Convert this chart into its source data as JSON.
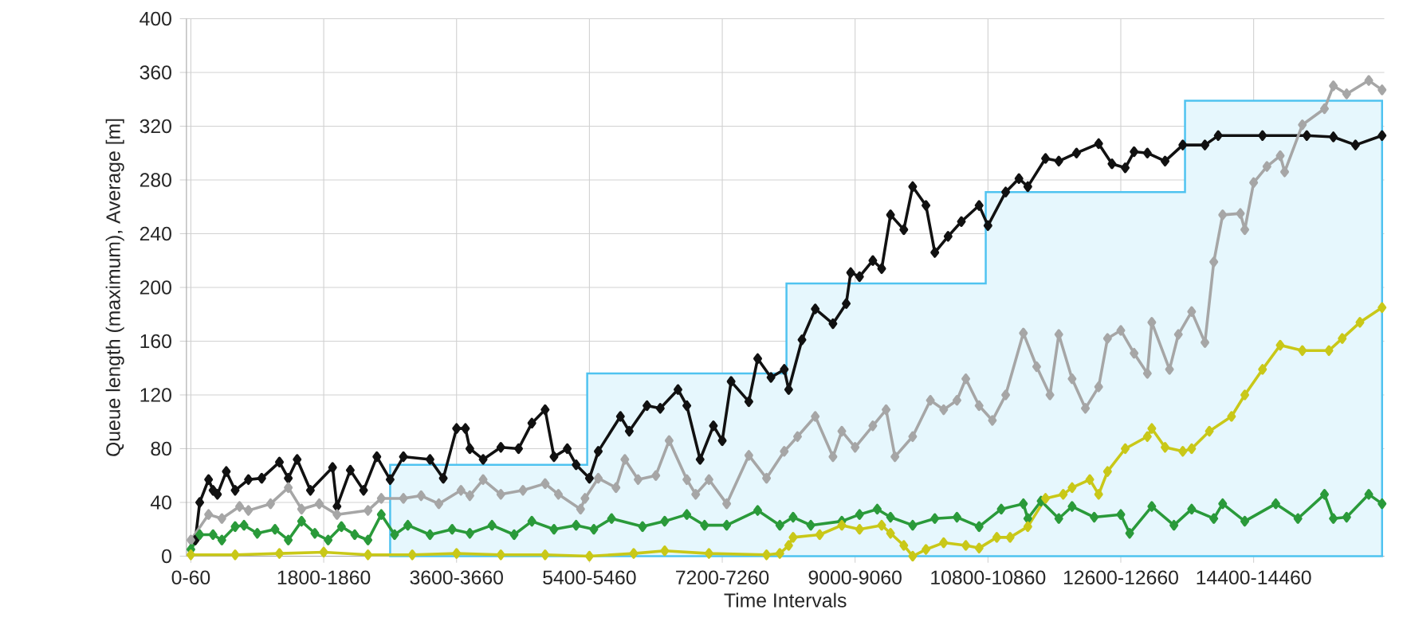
{
  "chart_data": {
    "type": "line",
    "xlabel": "Time Intervals",
    "ylabel": "Queue length (maximum), Average [m]",
    "categories": [
      "0-60",
      null,
      null,
      null,
      null,
      null,
      null,
      null,
      null,
      null,
      null,
      null,
      null,
      null,
      null,
      null,
      null,
      null,
      null,
      null,
      null,
      null,
      null,
      null,
      null,
      null,
      null,
      null,
      null,
      null,
      "1800-1860",
      null,
      null,
      null,
      null,
      null,
      null,
      null,
      null,
      null,
      null,
      null,
      null,
      null,
      null,
      null,
      null,
      null,
      null,
      null,
      null,
      null,
      null,
      null,
      null,
      null,
      null,
      null,
      null,
      null,
      "3600-3660",
      null,
      null,
      null,
      null,
      null,
      null,
      null,
      null,
      null,
      null,
      null,
      null,
      null,
      null,
      null,
      null,
      null,
      null,
      null,
      null,
      null,
      null,
      null,
      null,
      null,
      null,
      null,
      null,
      null,
      "5400-5460",
      null,
      null,
      null,
      null,
      null,
      null,
      null,
      null,
      null,
      null,
      null,
      null,
      null,
      null,
      null,
      null,
      null,
      null,
      null,
      null,
      null,
      null,
      null,
      null,
      null,
      null,
      null,
      null,
      null,
      "7200-7260",
      null,
      null,
      null,
      null,
      null,
      null,
      null,
      null,
      null,
      null,
      null,
      null,
      null,
      null,
      null,
      null,
      null,
      null,
      null,
      null,
      null,
      null,
      null,
      null,
      null,
      null,
      null,
      null,
      null,
      "9000-9060",
      null,
      null,
      null,
      null,
      null,
      null,
      null,
      null,
      null,
      null,
      null,
      null,
      null,
      null,
      null,
      null,
      null,
      null,
      null,
      null,
      null,
      null,
      null,
      null,
      null,
      null,
      null,
      null,
      null,
      "10800-10860",
      null,
      null,
      null,
      null,
      null,
      null,
      null,
      null,
      null,
      null,
      null,
      null,
      null,
      null,
      null,
      null,
      null,
      null,
      null,
      null,
      null,
      null,
      null,
      null,
      null,
      null,
      null,
      null,
      null,
      "12600-12660",
      null,
      null,
      null,
      null,
      null,
      null,
      null,
      null,
      null,
      null,
      null,
      null,
      null,
      null,
      null,
      null,
      null,
      null,
      null,
      null,
      null,
      null,
      null,
      null,
      null,
      null,
      null,
      null,
      null,
      "14400-14460",
      null,
      null,
      null,
      null,
      null,
      null,
      null,
      null,
      null,
      null,
      null,
      null,
      null,
      null,
      null,
      null,
      null,
      null,
      null,
      null,
      null,
      null,
      null,
      null,
      null,
      null,
      null,
      null,
      null
    ],
    "ylim": [
      0,
      400
    ],
    "yticks": [
      0,
      40,
      80,
      120,
      160,
      200,
      240,
      280,
      320,
      360,
      400
    ],
    "grid": true,
    "series": [
      {
        "type": "area",
        "color": "#4fc3f0",
        "values": [
          null,
          null,
          null,
          null,
          null,
          null,
          null,
          null,
          null,
          null,
          null,
          null,
          null,
          null,
          null,
          null,
          null,
          null,
          null,
          null,
          null,
          null,
          null,
          null,
          null,
          null,
          null,
          null,
          null,
          null,
          null,
          null,
          null,
          null,
          null,
          null,
          null,
          null,
          null,
          null,
          null,
          null,
          null,
          null,
          null,
          68,
          68,
          68,
          68,
          68,
          68,
          68,
          68,
          68,
          68,
          68,
          68,
          68,
          68,
          68,
          68,
          68,
          68,
          68,
          68,
          68,
          68,
          68,
          68,
          68,
          68,
          68,
          68,
          68,
          68,
          68,
          68,
          68,
          68,
          68,
          68,
          68,
          68,
          68,
          68,
          68,
          68,
          68,
          68,
          68,
          136,
          136,
          136,
          136,
          136,
          136,
          136,
          136,
          136,
          136,
          136,
          136,
          136,
          136,
          136,
          136,
          136,
          136,
          136,
          136,
          136,
          136,
          136,
          136,
          136,
          136,
          136,
          136,
          136,
          136,
          136,
          136,
          136,
          136,
          136,
          136,
          136,
          136,
          136,
          136,
          136,
          136,
          136,
          136,
          136,
          203,
          203,
          203,
          203,
          203,
          203,
          203,
          203,
          203,
          203,
          203,
          203,
          203,
          203,
          203,
          203,
          203,
          203,
          203,
          203,
          203,
          203,
          203,
          203,
          203,
          203,
          203,
          203,
          203,
          203,
          203,
          203,
          203,
          203,
          203,
          203,
          203,
          203,
          203,
          203,
          203,
          203,
          203,
          203,
          203,
          271,
          271,
          271,
          271,
          271,
          271,
          271,
          271,
          271,
          271,
          271,
          271,
          271,
          271,
          271,
          271,
          271,
          271,
          271,
          271,
          271,
          271,
          271,
          271,
          271,
          271,
          271,
          271,
          271,
          271,
          271,
          271,
          271,
          271,
          271,
          271,
          271,
          271,
          271,
          271,
          271,
          271,
          271,
          271,
          271,
          339,
          339,
          339,
          339,
          339,
          339,
          339,
          339,
          339,
          339,
          339,
          339,
          339,
          339,
          339,
          339,
          339,
          339,
          339,
          339,
          339,
          339,
          339,
          339,
          339,
          339,
          339,
          339,
          339,
          339,
          339,
          339,
          339,
          339,
          339,
          339,
          339,
          339,
          339,
          339,
          339,
          339,
          339,
          339,
          339
        ]
      },
      {
        "color": "#111111",
        "marker": "diamond",
        "values": [
          null,
          12,
          40,
          null,
          57,
          49,
          46,
          null,
          63,
          null,
          49,
          null,
          null,
          57,
          null,
          null,
          58,
          null,
          null,
          null,
          70,
          null,
          58,
          null,
          72,
          null,
          null,
          49,
          null,
          null,
          null,
          null,
          66,
          37,
          null,
          null,
          64,
          null,
          null,
          49,
          null,
          null,
          74,
          null,
          null,
          57,
          null,
          null,
          74,
          null,
          null,
          null,
          null,
          null,
          72,
          null,
          null,
          58,
          null,
          null,
          95,
          null,
          95,
          80,
          null,
          null,
          72,
          null,
          null,
          null,
          81,
          null,
          null,
          null,
          80,
          null,
          null,
          99,
          null,
          null,
          109,
          null,
          74,
          null,
          null,
          80,
          null,
          68,
          null,
          null,
          58,
          null,
          78,
          null,
          null,
          null,
          null,
          104,
          null,
          93,
          null,
          null,
          null,
          112,
          null,
          null,
          110,
          null,
          null,
          null,
          124,
          null,
          112,
          null,
          null,
          72,
          null,
          null,
          97,
          null,
          86,
          null,
          130,
          null,
          null,
          null,
          115,
          null,
          147,
          null,
          null,
          133,
          null,
          null,
          139,
          124,
          null,
          null,
          161,
          null,
          null,
          184,
          null,
          null,
          null,
          173,
          null,
          null,
          188,
          211,
          null,
          208,
          null,
          null,
          220,
          null,
          214,
          null,
          254,
          null,
          null,
          243,
          null,
          275,
          null,
          null,
          261,
          null,
          226,
          null,
          null,
          238,
          null,
          null,
          249,
          null,
          null,
          null,
          261,
          null,
          246,
          null,
          null,
          null,
          271,
          null,
          null,
          281,
          null,
          275,
          null,
          null,
          null,
          296,
          null,
          null,
          294,
          null,
          null,
          null,
          300,
          null,
          null,
          null,
          null,
          307,
          null,
          null,
          292,
          null,
          null,
          289,
          null,
          301,
          null,
          null,
          300,
          null,
          null,
          null,
          294,
          null,
          null,
          null,
          306,
          null,
          null,
          null,
          null,
          306,
          null,
          null,
          313,
          null,
          null,
          null,
          null,
          null,
          null,
          null,
          null,
          null,
          313,
          null,
          null,
          null,
          null,
          null,
          null,
          null,
          null,
          null,
          313,
          null,
          null,
          null,
          null,
          null,
          312,
          null,
          null,
          null,
          null,
          306,
          null,
          null,
          null,
          null,
          null,
          313
        ]
      },
      {
        "color": "#a6a6a6",
        "marker": "diamond",
        "values": [
          12,
          null,
          null,
          null,
          31,
          null,
          null,
          28,
          null,
          null,
          null,
          37,
          null,
          34,
          null,
          null,
          null,
          null,
          39,
          null,
          null,
          null,
          51,
          null,
          null,
          35,
          null,
          null,
          null,
          39,
          null,
          null,
          null,
          31,
          null,
          null,
          null,
          null,
          null,
          null,
          34,
          null,
          null,
          43,
          null,
          null,
          null,
          null,
          43,
          null,
          null,
          null,
          45,
          null,
          null,
          null,
          39,
          null,
          null,
          null,
          null,
          49,
          null,
          45,
          null,
          null,
          57,
          null,
          null,
          null,
          46,
          null,
          null,
          null,
          null,
          49,
          null,
          null,
          null,
          null,
          54,
          null,
          null,
          46,
          null,
          null,
          null,
          null,
          35,
          43,
          null,
          null,
          58,
          null,
          null,
          null,
          51,
          null,
          72,
          null,
          null,
          57,
          null,
          null,
          null,
          60,
          null,
          null,
          86,
          null,
          null,
          null,
          57,
          null,
          46,
          null,
          null,
          57,
          null,
          null,
          null,
          39,
          null,
          null,
          null,
          null,
          75,
          null,
          null,
          null,
          58,
          null,
          null,
          null,
          78,
          null,
          null,
          89,
          null,
          null,
          null,
          104,
          null,
          null,
          null,
          74,
          null,
          93,
          null,
          null,
          81,
          null,
          null,
          null,
          97,
          null,
          null,
          109,
          null,
          74,
          null,
          null,
          null,
          89,
          null,
          null,
          null,
          116,
          null,
          null,
          109,
          null,
          null,
          116,
          null,
          132,
          null,
          null,
          112,
          null,
          null,
          101,
          null,
          null,
          120,
          null,
          null,
          null,
          166,
          null,
          null,
          141,
          null,
          null,
          120,
          null,
          165,
          null,
          null,
          132,
          null,
          null,
          110,
          null,
          null,
          126,
          null,
          162,
          null,
          null,
          168,
          null,
          null,
          151,
          null,
          null,
          136,
          174,
          null,
          null,
          null,
          139,
          null,
          165,
          null,
          null,
          182,
          null,
          null,
          159,
          null,
          219,
          null,
          254,
          null,
          null,
          null,
          255,
          243,
          null,
          278,
          null,
          null,
          290,
          null,
          null,
          298,
          286,
          null,
          null,
          null,
          321,
          null,
          null,
          null,
          null,
          333,
          null,
          350,
          null,
          null,
          344,
          null,
          null,
          null,
          null,
          354,
          null,
          null,
          347
        ]
      },
      {
        "color": "#2a9a3a",
        "marker": "diamond",
        "values": [
          5,
          null,
          16,
          null,
          null,
          16,
          null,
          12,
          null,
          null,
          22,
          null,
          23,
          null,
          null,
          17,
          null,
          null,
          null,
          20,
          null,
          null,
          12,
          null,
          null,
          26,
          null,
          null,
          17,
          null,
          null,
          12,
          null,
          null,
          22,
          null,
          null,
          16,
          null,
          null,
          12,
          null,
          null,
          31,
          null,
          null,
          16,
          null,
          null,
          23,
          null,
          null,
          null,
          null,
          16,
          null,
          null,
          null,
          null,
          20,
          null,
          null,
          null,
          17,
          null,
          null,
          null,
          null,
          23,
          null,
          null,
          null,
          null,
          16,
          null,
          null,
          null,
          26,
          null,
          null,
          null,
          null,
          20,
          null,
          null,
          null,
          null,
          23,
          null,
          null,
          null,
          20,
          null,
          null,
          null,
          28,
          null,
          null,
          null,
          null,
          null,
          null,
          22,
          null,
          null,
          null,
          null,
          26,
          null,
          null,
          null,
          null,
          31,
          null,
          null,
          null,
          23,
          null,
          null,
          null,
          null,
          23,
          null,
          null,
          null,
          null,
          null,
          null,
          34,
          null,
          null,
          null,
          null,
          23,
          null,
          null,
          29,
          null,
          null,
          null,
          23,
          null,
          null,
          null,
          null,
          null,
          null,
          26,
          null,
          null,
          null,
          31,
          null,
          null,
          null,
          35,
          null,
          null,
          29,
          null,
          null,
          null,
          null,
          23,
          null,
          null,
          null,
          null,
          28,
          null,
          null,
          null,
          null,
          29,
          null,
          null,
          null,
          null,
          22,
          null,
          null,
          null,
          null,
          35,
          null,
          null,
          null,
          null,
          39,
          28,
          null,
          null,
          41,
          null,
          null,
          null,
          28,
          null,
          null,
          37,
          null,
          null,
          null,
          null,
          29,
          null,
          null,
          null,
          null,
          null,
          31,
          null,
          17,
          null,
          null,
          null,
          null,
          37,
          null,
          null,
          null,
          null,
          23,
          null,
          null,
          null,
          35,
          null,
          null,
          null,
          null,
          28,
          null,
          39,
          null,
          null,
          null,
          null,
          26,
          null,
          null,
          null,
          null,
          null,
          null,
          39,
          null,
          null,
          null,
          null,
          28,
          null,
          null,
          null,
          null,
          null,
          46,
          null,
          28,
          null,
          null,
          29,
          null,
          null,
          null,
          null,
          46,
          null,
          null,
          39
        ]
      },
      {
        "color": "#c9c818",
        "marker": "diamond",
        "values": [
          1,
          null,
          null,
          null,
          null,
          null,
          null,
          null,
          null,
          null,
          1,
          null,
          null,
          null,
          null,
          null,
          null,
          null,
          null,
          null,
          2,
          null,
          null,
          null,
          null,
          null,
          null,
          null,
          null,
          null,
          3,
          null,
          null,
          null,
          null,
          null,
          null,
          null,
          null,
          null,
          1,
          null,
          null,
          null,
          null,
          null,
          null,
          null,
          null,
          null,
          1,
          null,
          null,
          null,
          null,
          null,
          null,
          null,
          null,
          null,
          2,
          null,
          null,
          null,
          null,
          null,
          null,
          null,
          null,
          null,
          1,
          null,
          null,
          null,
          null,
          null,
          null,
          null,
          null,
          null,
          1,
          null,
          null,
          null,
          null,
          null,
          null,
          null,
          null,
          null,
          0,
          null,
          null,
          null,
          null,
          null,
          null,
          null,
          null,
          null,
          2,
          null,
          null,
          null,
          null,
          null,
          null,
          4,
          null,
          null,
          null,
          null,
          null,
          null,
          null,
          null,
          null,
          2,
          null,
          null,
          null,
          null,
          null,
          null,
          null,
          null,
          null,
          null,
          null,
          null,
          1,
          null,
          null,
          2,
          null,
          8,
          14,
          null,
          null,
          null,
          null,
          null,
          16,
          null,
          null,
          null,
          null,
          23,
          null,
          null,
          null,
          20,
          null,
          null,
          null,
          null,
          23,
          null,
          17,
          null,
          null,
          8,
          null,
          0,
          null,
          null,
          5,
          null,
          null,
          null,
          10,
          null,
          null,
          null,
          null,
          8,
          null,
          null,
          6,
          null,
          null,
          null,
          14,
          null,
          null,
          14,
          null,
          null,
          null,
          22,
          null,
          null,
          null,
          43,
          null,
          null,
          null,
          46,
          null,
          51,
          null,
          null,
          null,
          57,
          null,
          46,
          null,
          63,
          null,
          null,
          null,
          80,
          null,
          null,
          null,
          null,
          89,
          95,
          null,
          null,
          81,
          null,
          null,
          null,
          78,
          null,
          80,
          null,
          null,
          null,
          93,
          null,
          null,
          null,
          null,
          104,
          null,
          null,
          120,
          null,
          null,
          null,
          139,
          null,
          null,
          null,
          157,
          null,
          null,
          null,
          null,
          153,
          null,
          null,
          null,
          null,
          null,
          153,
          null,
          null,
          162,
          null,
          null,
          null,
          174,
          null,
          null,
          null,
          null,
          185
        ]
      }
    ]
  }
}
